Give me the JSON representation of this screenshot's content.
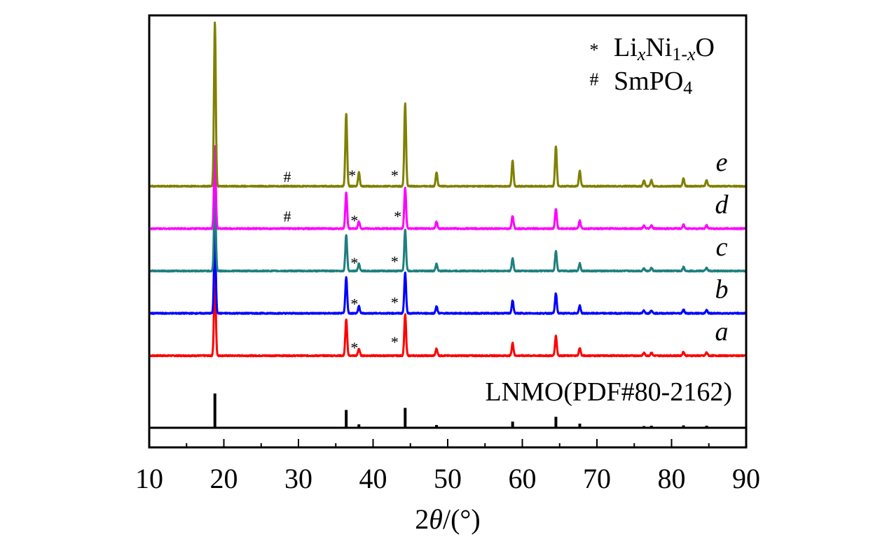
{
  "chart_data": {
    "type": "line",
    "title": "",
    "xlabel": "2θ/(°)",
    "xlabel_parts": {
      "symbol": "2",
      "italic": "θ",
      "unit": "/(°)"
    },
    "ylabel": "",
    "xlim": [
      10,
      90
    ],
    "x_ticks": [
      10,
      20,
      30,
      40,
      50,
      60,
      70,
      80,
      90
    ],
    "x_tick_labels": [
      "10",
      "20",
      "30",
      "40",
      "50",
      "60",
      "70",
      "80",
      "90"
    ],
    "peaks": [
      {
        "pos": 18.8,
        "height": 235
      },
      {
        "pos": 36.4,
        "height": 104
      },
      {
        "pos": 38.1,
        "height": 20
      },
      {
        "pos": 44.3,
        "height": 118
      },
      {
        "pos": 48.5,
        "height": 20
      },
      {
        "pos": 58.7,
        "height": 36
      },
      {
        "pos": 64.5,
        "height": 57
      },
      {
        "pos": 67.7,
        "height": 22
      },
      {
        "pos": 76.3,
        "height": 8
      },
      {
        "pos": 77.3,
        "height": 9
      },
      {
        "pos": 81.6,
        "height": 11
      },
      {
        "pos": 84.7,
        "height": 9
      }
    ],
    "series": [
      {
        "name": "a",
        "color": "#ff0000",
        "scale": 0.5,
        "baseline_level": 0,
        "markers": [
          {
            "symbol": "*",
            "x": 37.5,
            "y_offset": 4
          },
          {
            "symbol": "*",
            "x": 42.9,
            "y_offset": 12
          }
        ]
      },
      {
        "name": "b",
        "color": "#0000ff",
        "scale": 0.5,
        "baseline_level": 1,
        "markers": [
          {
            "symbol": "*",
            "x": 37.5,
            "y_offset": 6
          },
          {
            "symbol": "*",
            "x": 42.9,
            "y_offset": 8
          }
        ]
      },
      {
        "name": "c",
        "color": "#1f7f7f",
        "scale": 0.5,
        "baseline_level": 2,
        "markers": [
          {
            "symbol": "*",
            "x": 37.5,
            "y_offset": 4
          },
          {
            "symbol": "*",
            "x": 42.9,
            "y_offset": 6
          }
        ]
      },
      {
        "name": "d",
        "color": "#ff00ff",
        "scale": 0.5,
        "baseline_level": 3,
        "markers": [
          {
            "symbol": "#",
            "x": 28.5,
            "y_offset": 10
          },
          {
            "symbol": "*",
            "x": 37.5,
            "y_offset": 4
          },
          {
            "symbol": "*",
            "x": 43.3,
            "y_offset": 10
          }
        ]
      },
      {
        "name": "e",
        "color": "#808000",
        "scale": 1.0,
        "baseline_level": 4,
        "markers": [
          {
            "symbol": "#",
            "x": 28.5,
            "y_offset": 6
          },
          {
            "symbol": "*",
            "x": 37.2,
            "y_offset": 8
          },
          {
            "symbol": "*",
            "x": 42.9,
            "y_offset": 8
          }
        ]
      }
    ],
    "reference": {
      "label": "LNMO(PDF#80-2162)",
      "color": "#000000",
      "sticks": [
        {
          "pos": 18.8,
          "intensity": 100
        },
        {
          "pos": 36.4,
          "intensity": 52
        },
        {
          "pos": 38.1,
          "intensity": 10
        },
        {
          "pos": 44.3,
          "intensity": 58
        },
        {
          "pos": 48.5,
          "intensity": 8
        },
        {
          "pos": 58.7,
          "intensity": 18
        },
        {
          "pos": 64.5,
          "intensity": 32
        },
        {
          "pos": 67.7,
          "intensity": 12
        },
        {
          "pos": 76.3,
          "intensity": 5
        },
        {
          "pos": 77.3,
          "intensity": 6
        },
        {
          "pos": 81.6,
          "intensity": 7
        },
        {
          "pos": 84.7,
          "intensity": 6
        }
      ]
    },
    "legend": {
      "position": "top-right",
      "entries": [
        {
          "symbol": "*",
          "text_parts": [
            "Li",
            "x",
            "Ni",
            "1-",
            "x",
            "O"
          ],
          "label": "LixNi1-xO"
        },
        {
          "symbol": "#",
          "text_parts": [
            "SmPO",
            "4"
          ],
          "label": "SmPO4"
        }
      ]
    },
    "grid": false
  }
}
